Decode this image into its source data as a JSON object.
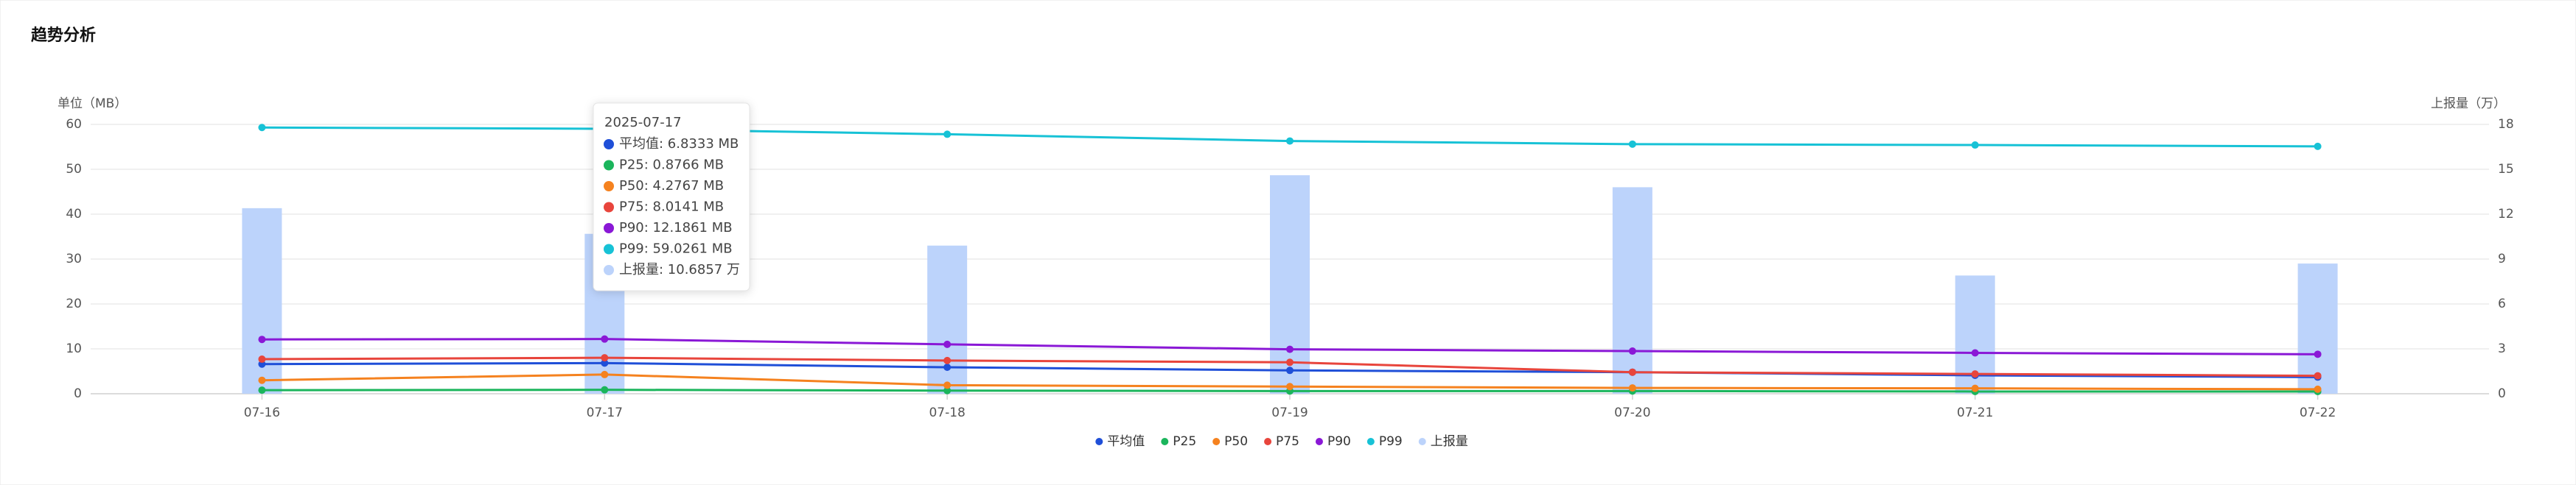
{
  "chart_data": {
    "type": "line",
    "title": "趋势分析",
    "y_label": "单位（MB）",
    "y2_label": "上报量（万）",
    "categories": [
      "07-16",
      "07-17",
      "07-18",
      "07-19",
      "07-20",
      "07-21",
      "07-22"
    ],
    "ylim": [
      0,
      60
    ],
    "yticks": [
      0,
      10,
      20,
      30,
      40,
      50,
      60
    ],
    "y2lim": [
      0,
      18
    ],
    "y2ticks": [
      0,
      3,
      6,
      9,
      12,
      15,
      18
    ],
    "grid": true,
    "legend": "bottom",
    "series": [
      {
        "name": "平均值",
        "color": "#1f4fd8",
        "values": [
          6.6,
          6.8333,
          5.9,
          5.2,
          4.8,
          4.1,
          3.7
        ]
      },
      {
        "name": "P25",
        "color": "#1bb55c",
        "values": [
          0.8,
          0.8766,
          0.7,
          0.6,
          0.6,
          0.5,
          0.5
        ]
      },
      {
        "name": "P50",
        "color": "#f5821f",
        "values": [
          3.0,
          4.2767,
          1.9,
          1.6,
          1.3,
          1.2,
          1.0
        ]
      },
      {
        "name": "P75",
        "color": "#e8453c",
        "values": [
          7.7,
          8.0141,
          7.4,
          7.0,
          4.8,
          4.4,
          4.0
        ]
      },
      {
        "name": "P90",
        "color": "#8a18d6",
        "values": [
          12.1,
          12.1861,
          11.0,
          9.9,
          9.5,
          9.1,
          8.8
        ]
      },
      {
        "name": "P99",
        "color": "#17c2d6",
        "values": [
          59.3,
          59.0261,
          57.8,
          56.3,
          55.6,
          55.4,
          55.1
        ]
      },
      {
        "name": "上报量",
        "color": "#bcd3fb",
        "type": "bar",
        "axis": "y2",
        "values": [
          12.4,
          10.6857,
          9.9,
          14.6,
          13.8,
          7.9,
          8.7
        ]
      }
    ],
    "tooltip": {
      "title": "2025-07-17",
      "items": [
        "平均值: 6.8333 MB",
        "P25: 0.8766 MB",
        "P50: 4.2767 MB",
        "P75: 8.0141 MB",
        "P90: 12.1861 MB",
        "P99: 59.0261 MB",
        "上报量: 10.6857 万"
      ]
    }
  }
}
